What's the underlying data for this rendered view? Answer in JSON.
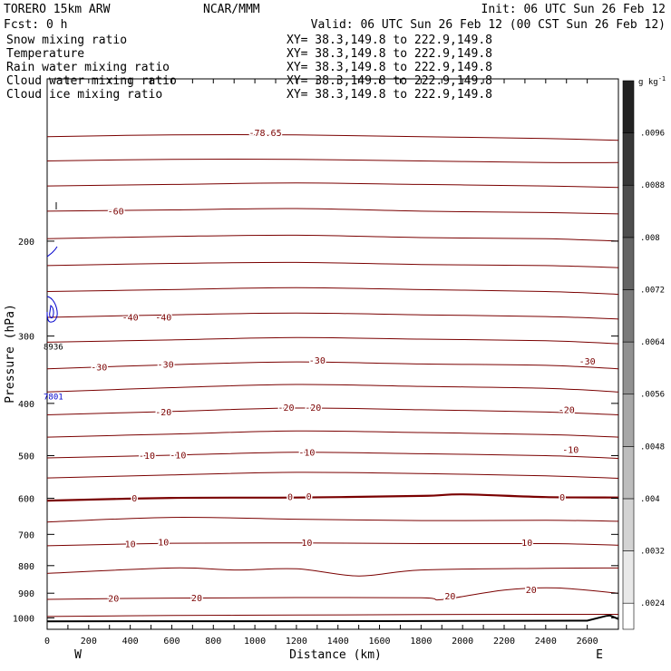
{
  "header": {
    "model": "TORERO  15km ARW",
    "org": "NCAR/MMM",
    "init": "Init: 06 UTC Sun 26 Feb 12",
    "fcst": "Fcst:    0 h",
    "valid": "Valid: 06 UTC Sun 26 Feb 12 (00 CST Sun 26 Feb 12)"
  },
  "fields": [
    {
      "name": "Snow mixing ratio",
      "xy": "XY=  38.3,149.8 to 222.9,149.8",
      "color": "#000000"
    },
    {
      "name": "Temperature",
      "xy": "XY=  38.3,149.8 to 222.9,149.8",
      "color": "#cc0000"
    },
    {
      "name": "Rain water mixing ratio",
      "xy": "XY=  38.3,149.8 to 222.9,149.8",
      "color": "#cc0000"
    },
    {
      "name": "Cloud water mixing ratio",
      "xy": "XY=  38.3,149.8 to 222.9,149.8",
      "color": "#0000cc"
    },
    {
      "name": "Cloud ice mixing ratio",
      "xy": "XY=  38.3,149.8 to 222.9,149.8",
      "color": "#000000"
    }
  ],
  "chart_data": {
    "type": "line",
    "xlabel": "Distance (km)",
    "ylabel": "Pressure (hPa)",
    "xlim": [
      0,
      2750
    ],
    "ylim": [
      1050,
      100
    ],
    "y_scale": "log",
    "x_ticks": [
      0,
      100,
      200,
      300,
      400,
      500,
      600,
      700,
      800,
      900,
      1000,
      1100,
      1200,
      1300,
      1400,
      1500,
      1600,
      1700,
      1800,
      1900,
      2000,
      2100,
      2200,
      2300,
      2400,
      2500,
      2600
    ],
    "x_tick_labels": [
      "0",
      "200",
      "400",
      "600",
      "800",
      "1000",
      "1200",
      "1400",
      "1600",
      "1800",
      "2000",
      "2200",
      "2400",
      "2600"
    ],
    "x_tick_label_values": [
      0,
      200,
      400,
      600,
      800,
      1000,
      1200,
      1400,
      1600,
      1800,
      2000,
      2200,
      2400,
      2600
    ],
    "y_ticks": [
      200,
      300,
      400,
      500,
      600,
      700,
      800,
      900,
      1000
    ],
    "y_tick_labels": [
      "200",
      "300",
      "400",
      "500",
      "600",
      "700",
      "800",
      "900",
      "1000"
    ],
    "end_labels": {
      "left": "W",
      "right": "E"
    },
    "isotherm_interval": 5,
    "isotherms": [
      {
        "t": -75,
        "x": [
          0,
          600,
          1200,
          1800,
          2400,
          2750
        ],
        "p": [
          128,
          127,
          127,
          128,
          129,
          130
        ]
      },
      {
        "t": -70,
        "x": [
          0,
          600,
          1200,
          1800,
          2400,
          2750
        ],
        "p": [
          142,
          141,
          141,
          142,
          143,
          143
        ]
      },
      {
        "t": -65,
        "x": [
          0,
          600,
          1200,
          1800,
          2400,
          2750
        ],
        "p": [
          158,
          157,
          156,
          157,
          158,
          159
        ]
      },
      {
        "t": -60,
        "x": [
          0,
          600,
          1200,
          1800,
          2400,
          2750
        ],
        "p": [
          176,
          175,
          174,
          176,
          177,
          178
        ]
      },
      {
        "t": -55,
        "x": [
          0,
          600,
          1200,
          1800,
          2400,
          2750
        ],
        "p": [
          198,
          196,
          195,
          197,
          198,
          200
        ]
      },
      {
        "t": -50,
        "x": [
          0,
          600,
          1200,
          1800,
          2400,
          2750
        ],
        "p": [
          222,
          220,
          219,
          221,
          222,
          224
        ]
      },
      {
        "t": -45,
        "x": [
          0,
          600,
          1200,
          1800,
          2400,
          2750
        ],
        "p": [
          248,
          246,
          244,
          246,
          248,
          251
        ]
      },
      {
        "t": -40,
        "x": [
          0,
          600,
          1200,
          1800,
          2400,
          2750
        ],
        "p": [
          277,
          274,
          272,
          274,
          276,
          279
        ]
      },
      {
        "t": -35,
        "x": [
          0,
          600,
          1200,
          1800,
          2400,
          2750
        ],
        "p": [
          308,
          305,
          302,
          304,
          306,
          310
        ]
      },
      {
        "t": -30,
        "x": [
          0,
          600,
          1200,
          1800,
          2400,
          2750
        ],
        "p": [
          345,
          339,
          335,
          338,
          340,
          345
        ]
      },
      {
        "t": -25,
        "x": [
          0,
          600,
          1200,
          1800,
          2400,
          2750
        ],
        "p": [
          381,
          374,
          369,
          372,
          375,
          381
        ]
      },
      {
        "t": -20,
        "x": [
          0,
          600,
          1200,
          1800,
          2400,
          2750
        ],
        "p": [
          420,
          414,
          408,
          411,
          415,
          420
        ]
      },
      {
        "t": -15,
        "x": [
          0,
          600,
          1200,
          1800,
          2400,
          2750
        ],
        "p": [
          462,
          456,
          450,
          453,
          457,
          462
        ]
      },
      {
        "t": -10,
        "x": [
          0,
          600,
          1200,
          1800,
          2400,
          2750
        ],
        "p": [
          505,
          499,
          493,
          496,
          500,
          506
        ]
      },
      {
        "t": -5,
        "x": [
          0,
          600,
          1200,
          1800,
          2400,
          2750
        ],
        "p": [
          550,
          543,
          537,
          540,
          545,
          551
        ]
      },
      {
        "t": 0,
        "x": [
          0,
          600,
          1200,
          1800,
          2000,
          2400,
          2750
        ],
        "p": [
          606,
          599,
          598,
          594,
          590,
          597,
          598
        ]
      },
      {
        "t": 5,
        "x": [
          0,
          600,
          1200,
          1800,
          2400,
          2750
        ],
        "p": [
          664,
          651,
          656,
          660,
          659,
          662
        ]
      },
      {
        "t": 10,
        "x": [
          0,
          600,
          1200,
          1800,
          2400,
          2750
        ],
        "p": [
          735,
          727,
          726,
          728,
          728,
          733
        ]
      },
      {
        "t": 15,
        "x": [
          0,
          600,
          900,
          1200,
          1500,
          1800,
          2400,
          2750
        ],
        "p": [
          827,
          808,
          815,
          811,
          836,
          815,
          809,
          808
        ]
      },
      {
        "t": 20,
        "x": [
          0,
          600,
          1200,
          1800,
          1900,
          2200,
          2450,
          2750
        ],
        "p": [
          924,
          919,
          917,
          918,
          925,
          888,
          880,
          900
        ]
      },
      {
        "t": 25,
        "x": [
          0,
          600,
          1200,
          1800,
          2400,
          2750
        ],
        "p": [
          994,
          990,
          988,
          986,
          985,
          985
        ]
      }
    ],
    "isotherm_labels": [
      {
        "text": "-78.65",
        "x": 1050,
        "p": 126
      },
      {
        "text": "-60",
        "x": 330,
        "p": 176
      },
      {
        "text": "-40",
        "x": 400,
        "p": 277
      },
      {
        "text": "-40",
        "x": 560,
        "p": 277
      },
      {
        "text": "-30",
        "x": 250,
        "p": 343
      },
      {
        "text": "-30",
        "x": 570,
        "p": 339
      },
      {
        "text": "-30",
        "x": 1300,
        "p": 333
      },
      {
        "text": "-30",
        "x": 2600,
        "p": 334
      },
      {
        "text": "-20",
        "x": 560,
        "p": 415
      },
      {
        "text": "-20",
        "x": 1150,
        "p": 407
      },
      {
        "text": "-20",
        "x": 1280,
        "p": 407
      },
      {
        "text": "-20",
        "x": 2500,
        "p": 411
      },
      {
        "text": "-10",
        "x": 480,
        "p": 500
      },
      {
        "text": "-10",
        "x": 630,
        "p": 499
      },
      {
        "text": "-10",
        "x": 1250,
        "p": 493
      },
      {
        "text": "-10",
        "x": 2520,
        "p": 488
      },
      {
        "text": "0",
        "x": 420,
        "p": 600
      },
      {
        "text": "0",
        "x": 1170,
        "p": 596
      },
      {
        "text": "0",
        "x": 1260,
        "p": 595
      },
      {
        "text": "0",
        "x": 2480,
        "p": 598
      },
      {
        "text": "10",
        "x": 400,
        "p": 729
      },
      {
        "text": "10",
        "x": 560,
        "p": 724
      },
      {
        "text": "10",
        "x": 1250,
        "p": 726
      },
      {
        "text": "10",
        "x": 2310,
        "p": 726
      },
      {
        "text": "20",
        "x": 320,
        "p": 921
      },
      {
        "text": "20",
        "x": 720,
        "p": 919
      },
      {
        "text": "20",
        "x": 1940,
        "p": 912
      },
      {
        "text": "20",
        "x": 2330,
        "p": 888
      }
    ],
    "cloud_water": {
      "values": [
        "8936",
        "7801"
      ],
      "value_points": [
        {
          "x": 30,
          "p": 318
        },
        {
          "x": 30,
          "p": 393
        }
      ]
    },
    "terrain": {
      "x": [
        0,
        1600,
        2600,
        2690,
        2710,
        2750
      ],
      "p": [
        1015,
        1014,
        1012,
        992,
        990,
        1005
      ]
    },
    "colorbar": {
      "units": "g kg",
      "units_exponent": "-1",
      "ticks": [
        ".0024",
        ".0032",
        ".004",
        ".0048",
        ".0056",
        ".0064",
        ".0072",
        ".008",
        ".0088",
        ".0096"
      ],
      "tick_values": [
        0.0024,
        0.0032,
        0.004,
        0.0048,
        0.0056,
        0.0064,
        0.0072,
        0.008,
        0.0088,
        0.0096
      ],
      "range": [
        0.002,
        0.0104
      ],
      "shade_start": "#ffffff",
      "shade_end": "#222222"
    },
    "colors": {
      "temperature": "#7a0000",
      "cloud_water": "#0000cc",
      "terrain": "#000000"
    }
  }
}
